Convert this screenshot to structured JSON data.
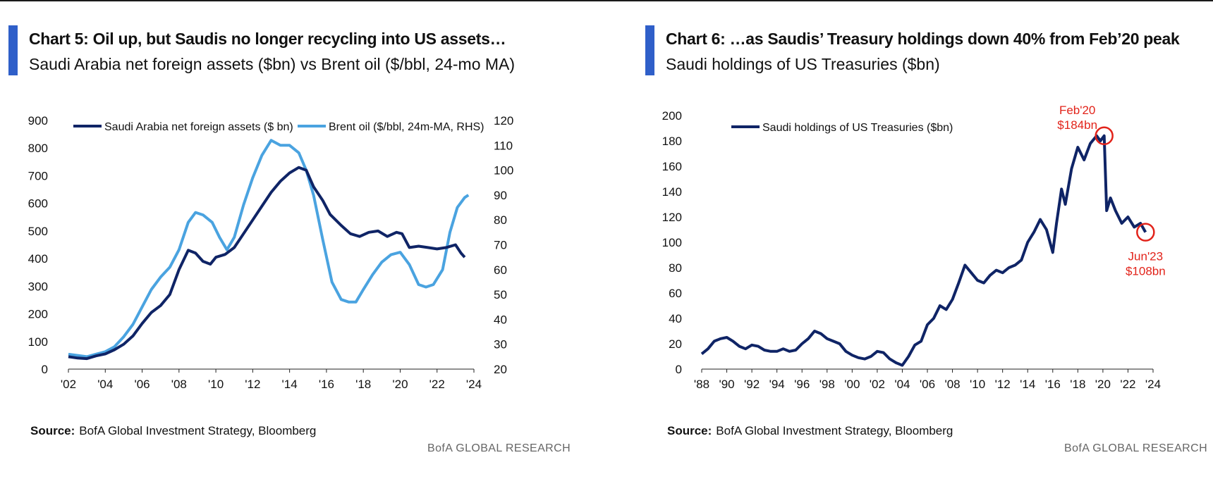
{
  "colors": {
    "accent": "#2f5fc9",
    "navy": "#0f2466",
    "lightblue": "#4aa3e0",
    "annotation_red": "#e2231a"
  },
  "chart_data": [
    {
      "type": "line",
      "title": "Chart 5: Oil up, but Saudis no longer recycling into US assets…",
      "subtitle": "Saudi Arabia net foreign assets ($bn) vs Brent oil ($/bbl, 24-mo MA)",
      "x_ticks": [
        "'02",
        "'04",
        "'06",
        "'08",
        "'10",
        "'12",
        "'14",
        "'16",
        "'18",
        "'20",
        "'22",
        "'24"
      ],
      "y_left_ticks": [
        "0",
        "100",
        "200",
        "300",
        "400",
        "500",
        "600",
        "700",
        "800",
        "900"
      ],
      "y_right_ticks": [
        "20",
        "30",
        "40",
        "50",
        "60",
        "70",
        "80",
        "90",
        "100",
        "110",
        "120"
      ],
      "ylim_left": [
        0,
        900
      ],
      "ylim_right": [
        20,
        120
      ],
      "xlim": [
        2002,
        2024
      ],
      "legend_position": "top",
      "grid": false,
      "series": [
        {
          "name": "Saudi Arabia net foreign assets ($ bn)",
          "axis": "left",
          "color": "#0f2466",
          "x": [
            2002,
            2002.5,
            2003,
            2003.5,
            2004,
            2004.5,
            2005,
            2005.5,
            2006,
            2006.5,
            2007,
            2007.5,
            2008,
            2008.5,
            2008.9,
            2009.3,
            2009.7,
            2010,
            2010.5,
            2011,
            2011.5,
            2012,
            2012.5,
            2013,
            2013.5,
            2014,
            2014.5,
            2014.9,
            2015.3,
            2015.8,
            2016.2,
            2016.8,
            2017.3,
            2017.8,
            2018.3,
            2018.8,
            2019.3,
            2019.8,
            2020.1,
            2020.5,
            2021,
            2021.5,
            2022,
            2022.5,
            2023,
            2023.3,
            2023.5
          ],
          "values": [
            45,
            40,
            38,
            48,
            55,
            70,
            90,
            120,
            165,
            205,
            230,
            270,
            360,
            430,
            420,
            390,
            380,
            405,
            415,
            440,
            490,
            540,
            590,
            640,
            680,
            710,
            730,
            720,
            660,
            610,
            560,
            520,
            490,
            480,
            495,
            500,
            480,
            495,
            490,
            440,
            445,
            440,
            435,
            440,
            450,
            420,
            405
          ]
        },
        {
          "name": "Brent oil ($/bbl, 24m-MA, RHS)",
          "axis": "right",
          "color": "#4aa3e0",
          "x": [
            2002,
            2002.5,
            2003,
            2003.5,
            2004,
            2004.5,
            2005,
            2005.5,
            2006,
            2006.5,
            2007,
            2007.5,
            2008,
            2008.5,
            2008.9,
            2009.3,
            2009.8,
            2010.2,
            2010.6,
            2011,
            2011.5,
            2012,
            2012.5,
            2013,
            2013.5,
            2014,
            2014.5,
            2014.9,
            2015.3,
            2015.8,
            2016.3,
            2016.8,
            2017.2,
            2017.6,
            2018,
            2018.5,
            2019,
            2019.5,
            2020,
            2020.5,
            2021,
            2021.4,
            2021.8,
            2022.3,
            2022.7,
            2023.1,
            2023.5,
            2023.7
          ],
          "values": [
            26,
            25.5,
            25,
            26,
            27,
            29,
            33,
            38,
            45,
            52,
            57,
            61,
            68,
            79,
            83,
            82,
            79,
            73,
            68,
            73,
            86,
            97,
            106,
            112,
            110,
            110,
            107,
            100,
            90,
            72,
            55,
            48,
            47,
            47,
            52,
            58,
            63,
            66,
            67,
            62,
            54,
            53,
            54,
            60,
            75,
            85,
            89,
            90
          ]
        }
      ]
    },
    {
      "type": "line",
      "title": "Chart 6: …as Saudis’ Treasury holdings down 40% from Feb’20 peak",
      "subtitle": "Saudi holdings of US Treasuries ($bn)",
      "x_ticks": [
        "'88",
        "'90",
        "'92",
        "'94",
        "'96",
        "'98",
        "'00",
        "'02",
        "'04",
        "'06",
        "'08",
        "'10",
        "'12",
        "'14",
        "'16",
        "'18",
        "'20",
        "'22",
        "'24"
      ],
      "y_ticks": [
        "0",
        "20",
        "40",
        "60",
        "80",
        "100",
        "120",
        "140",
        "160",
        "180",
        "200"
      ],
      "ylim": [
        0,
        200
      ],
      "xlim": [
        1988,
        2024
      ],
      "legend_position": "top-left",
      "grid": false,
      "series": [
        {
          "name": "Saudi holdings of US Treasuries ($bn)",
          "color": "#0f2466",
          "x": [
            1988,
            1988.5,
            1989,
            1989.5,
            1990,
            1990.5,
            1991,
            1991.5,
            1992,
            1992.5,
            1993,
            1993.5,
            1994,
            1994.5,
            1995,
            1995.5,
            1996,
            1996.5,
            1997,
            1997.5,
            1998,
            1998.5,
            1999,
            1999.5,
            2000,
            2000.5,
            2001,
            2001.5,
            2002,
            2002.5,
            2003,
            2003.5,
            2004,
            2004.5,
            2005,
            2005.5,
            2006,
            2006.5,
            2007,
            2007.5,
            2008,
            2008.5,
            2009,
            2009.5,
            2010,
            2010.5,
            2011,
            2011.5,
            2012,
            2012.5,
            2013,
            2013.5,
            2014,
            2014.5,
            2015,
            2015.5,
            2016,
            2016.3,
            2016.7,
            2017,
            2017.5,
            2018,
            2018.5,
            2019,
            2019.5,
            2019.8,
            2020.1,
            2020.3,
            2020.6,
            2021,
            2021.5,
            2022,
            2022.5,
            2023,
            2023.4
          ],
          "values": [
            12,
            16,
            22,
            24,
            25,
            22,
            18,
            16,
            19,
            18,
            15,
            14,
            14,
            16,
            14,
            15,
            20,
            24,
            30,
            28,
            24,
            22,
            20,
            14,
            11,
            9,
            8,
            10,
            14,
            13,
            8,
            5,
            3,
            10,
            19,
            22,
            35,
            40,
            50,
            47,
            55,
            68,
            82,
            76,
            70,
            68,
            74,
            78,
            76,
            80,
            82,
            86,
            100,
            108,
            118,
            110,
            92,
            115,
            142,
            130,
            158,
            175,
            165,
            178,
            184,
            180,
            184,
            125,
            135,
            125,
            115,
            120,
            112,
            115,
            108
          ]
        }
      ],
      "annotations": [
        {
          "label_line1": "Feb'20",
          "label_line2": "$184bn",
          "x": 2020.1,
          "y": 184
        },
        {
          "label_line1": "Jun'23",
          "label_line2": "$108bn",
          "x": 2023.4,
          "y": 108
        }
      ]
    }
  ],
  "panels": {
    "left": {
      "title": "Chart 5: Oil up, but Saudis no longer recycling into US assets…",
      "subtitle": "Saudi Arabia net foreign assets ($bn) vs Brent oil ($/bbl, 24-mo MA)",
      "source_label": "Source:",
      "source_text": "BofA Global Investment Strategy, Bloomberg",
      "footer": "BofA GLOBAL RESEARCH"
    },
    "right": {
      "title": "Chart 6: …as Saudis’ Treasury holdings down 40% from Feb’20 peak",
      "subtitle": "Saudi holdings of US Treasuries ($bn)",
      "source_label": "Source:",
      "source_text": "BofA Global Investment Strategy, Bloomberg",
      "footer": "BofA GLOBAL RESEARCH"
    }
  }
}
